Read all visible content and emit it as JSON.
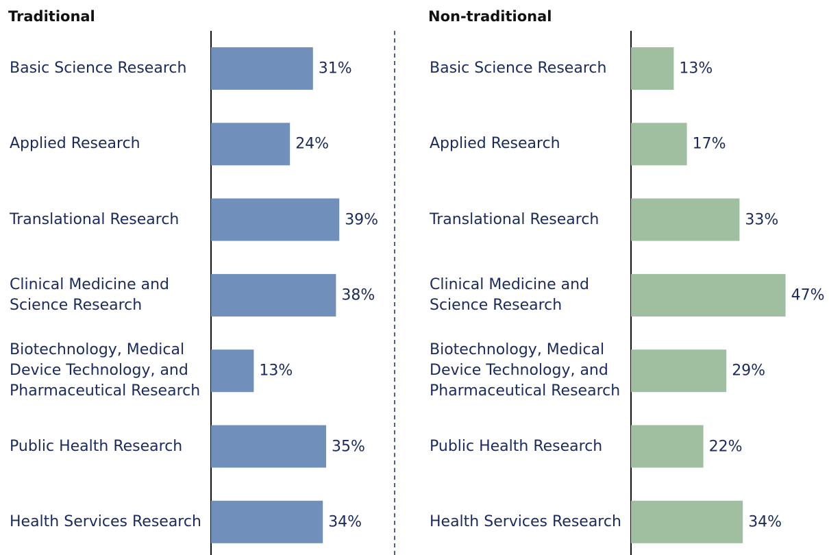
{
  "chart_data": [
    {
      "type": "bar",
      "title": "Traditional",
      "categories": [
        "Basic Science Research",
        "Applied Research",
        "Translational Research",
        "Clinical Medicine and Science Research",
        "Biotechnology, Medical Device Technology, and Pharmaceutical Research",
        "Public Health Research",
        "Health Services Research"
      ],
      "values": [
        31,
        24,
        39,
        38,
        13,
        35,
        34
      ],
      "value_labels": [
        "31%",
        "24%",
        "39%",
        "38%",
        "13%",
        "35%",
        "34%"
      ],
      "color": "#7090bb",
      "xlim": [
        0,
        50
      ]
    },
    {
      "type": "bar",
      "title": "Non-traditional",
      "categories": [
        "Basic Science Research",
        "Applied Research",
        "Translational Research",
        "Clinical Medicine and Science Research",
        "Biotechnology, Medical Device Technology, and Pharmaceutical Research",
        "Public Health Research",
        "Health Services Research"
      ],
      "values": [
        13,
        17,
        33,
        47,
        29,
        22,
        34
      ],
      "value_labels": [
        "13%",
        "17%",
        "33%",
        "47%",
        "29%",
        "22%",
        "34%"
      ],
      "color": "#a0bfa0",
      "xlim": [
        0,
        50
      ]
    }
  ]
}
